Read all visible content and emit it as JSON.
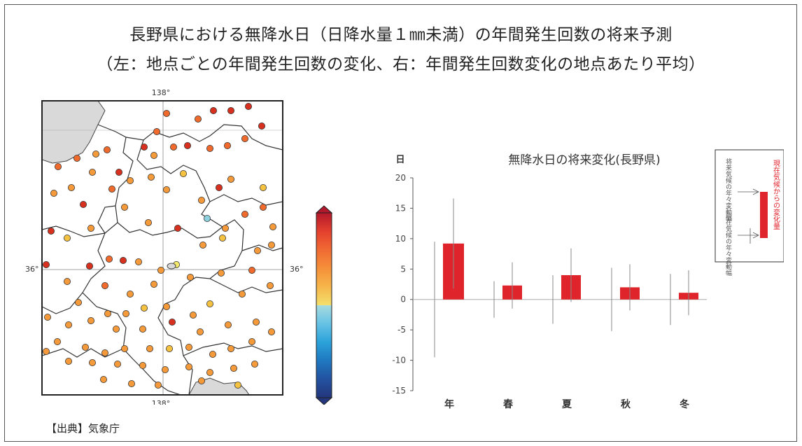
{
  "header": {
    "title_line1": "長野県における無降水日（日降水量１㎜未満）の年間発生回数の将来予測",
    "title_line2": "（左：地点ごとの年間発生回数の変化、右：年間発生回数変化の地点あたり平均）"
  },
  "map": {
    "lon_label_top": "138°",
    "lon_label_bottom": "138°",
    "lat_label_left": "36°",
    "lat_label_right": "36°",
    "colorbar_ticks": [
      "20",
      "16",
      "12",
      "8",
      "4",
      "0",
      "−4",
      "−8",
      "−12",
      "−16",
      "−20"
    ],
    "colors": {
      "red": "#d7301f",
      "orange": "#ef6a2c",
      "light_orange": "#f59a3a",
      "yellow_orange": "#f5c140",
      "yellow": "#f2e86b",
      "light_blue": "#8ed0e0",
      "land_outside": "#d9d9d9"
    }
  },
  "chart_data": {
    "type": "bar",
    "title": "無降水日の将来変化(長野県)",
    "ylabel": "日",
    "categories": [
      "年",
      "春",
      "夏",
      "秋",
      "冬"
    ],
    "ylim": [
      -15,
      20
    ],
    "yticks": [
      "-15",
      "-10",
      "-5",
      "0",
      "5",
      "10",
      "15",
      "20"
    ],
    "series": [
      {
        "values": [
          9.2,
          2.3,
          4.0,
          2.0,
          1.1
        ],
        "change_range_low": [
          1.8,
          -1.5,
          -0.4,
          -1.8,
          -2.6
        ],
        "change_range_high": [
          16.6,
          6.1,
          8.4,
          5.8,
          4.8
        ],
        "present_var_low": [
          -9.5,
          -3.0,
          -4.0,
          -5.2,
          -4.2
        ],
        "present_var_high": [
          9.5,
          3.0,
          4.0,
          5.2,
          4.2
        ]
      }
    ],
    "colors": {
      "bar": "#e0242c",
      "whisker": "#888888",
      "zero_line": "#aaaaaa"
    },
    "legend": {
      "change_label": "現在気候からの変化量",
      "future_var_label": "将来気候の年々変動幅",
      "present_var_label": "現在気候の年々変動幅"
    }
  },
  "footer": {
    "source": "【出典】気象庁"
  }
}
